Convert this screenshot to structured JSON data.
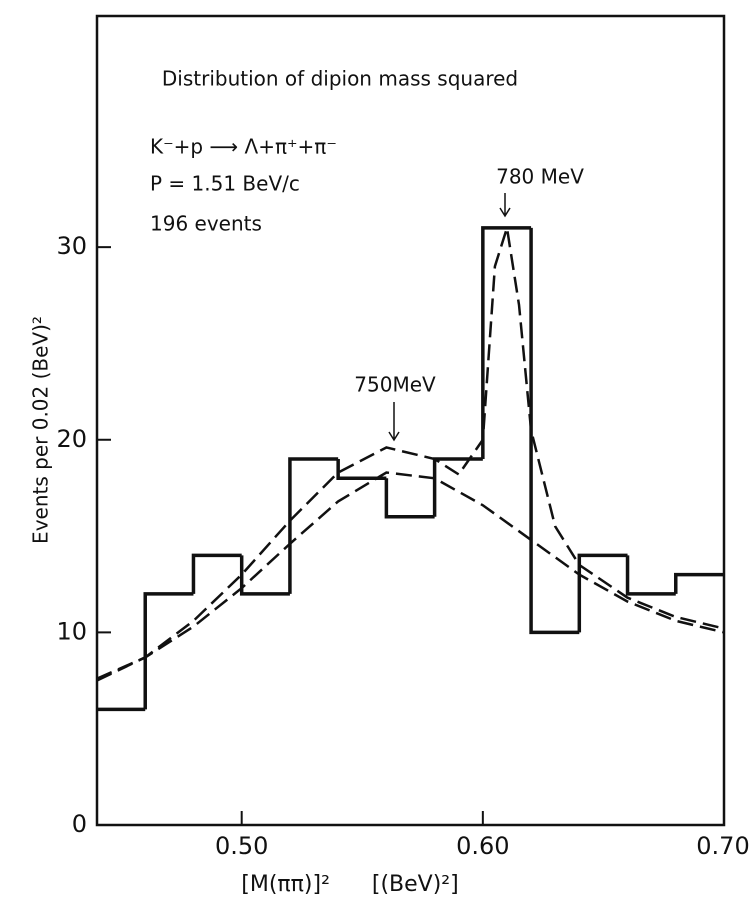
{
  "chart_data": {
    "type": "histogram",
    "title": "Distribution of dipion mass squared",
    "annotations": [
      "K⁻+p ⟶ Λ+π⁺+π⁻",
      "P = 1.51 BeV/c",
      "196 events",
      "780 MeV",
      "750MeV"
    ],
    "ylabel": "Events per 0.02 (BeV)²",
    "xlabel": "[M(ππ)]²      [(BeV)²]",
    "bins": [
      0.44,
      0.46,
      0.48,
      0.5,
      0.52,
      0.54,
      0.56,
      0.58,
      0.6,
      0.62,
      0.64,
      0.66,
      0.68,
      0.7
    ],
    "counts": [
      6,
      12,
      14,
      12,
      19,
      18,
      16,
      19,
      31,
      10,
      14,
      12,
      13
    ],
    "color": "#111111",
    "curves": [
      {
        "x": [
          0.44,
          0.46,
          0.48,
          0.5,
          0.52,
          0.54,
          0.56,
          0.58,
          0.6,
          0.62,
          0.64,
          0.66,
          0.68,
          0.7
        ],
        "values": [
          7.5,
          8.7,
          10.3,
          12.3,
          14.6,
          16.8,
          18.3,
          18.0,
          16.6,
          14.8,
          13.0,
          11.6,
          10.6,
          10.0
        ]
      },
      {
        "x": [
          0.44,
          0.46,
          0.48,
          0.5,
          0.52,
          0.54,
          0.56,
          0.58,
          0.59,
          0.6,
          0.605,
          0.61,
          0.615,
          0.62,
          0.63,
          0.64,
          0.66,
          0.68,
          0.7
        ],
        "values": [
          7.6,
          8.7,
          10.6,
          13.0,
          15.8,
          18.3,
          19.6,
          19.0,
          18.2,
          20.0,
          29.0,
          31.0,
          27.0,
          20.5,
          15.5,
          13.5,
          11.8,
          10.8,
          10.2
        ]
      }
    ],
    "xlim": [
      0.44,
      0.7
    ],
    "ylim": [
      0,
      42
    ],
    "xticks": [
      {
        "value": 0.5,
        "label": "0.50"
      },
      {
        "value": 0.6,
        "label": "0.60"
      },
      {
        "value": 0.7,
        "label": "0.70"
      }
    ],
    "yticks": [
      0,
      10,
      20,
      30
    ]
  }
}
